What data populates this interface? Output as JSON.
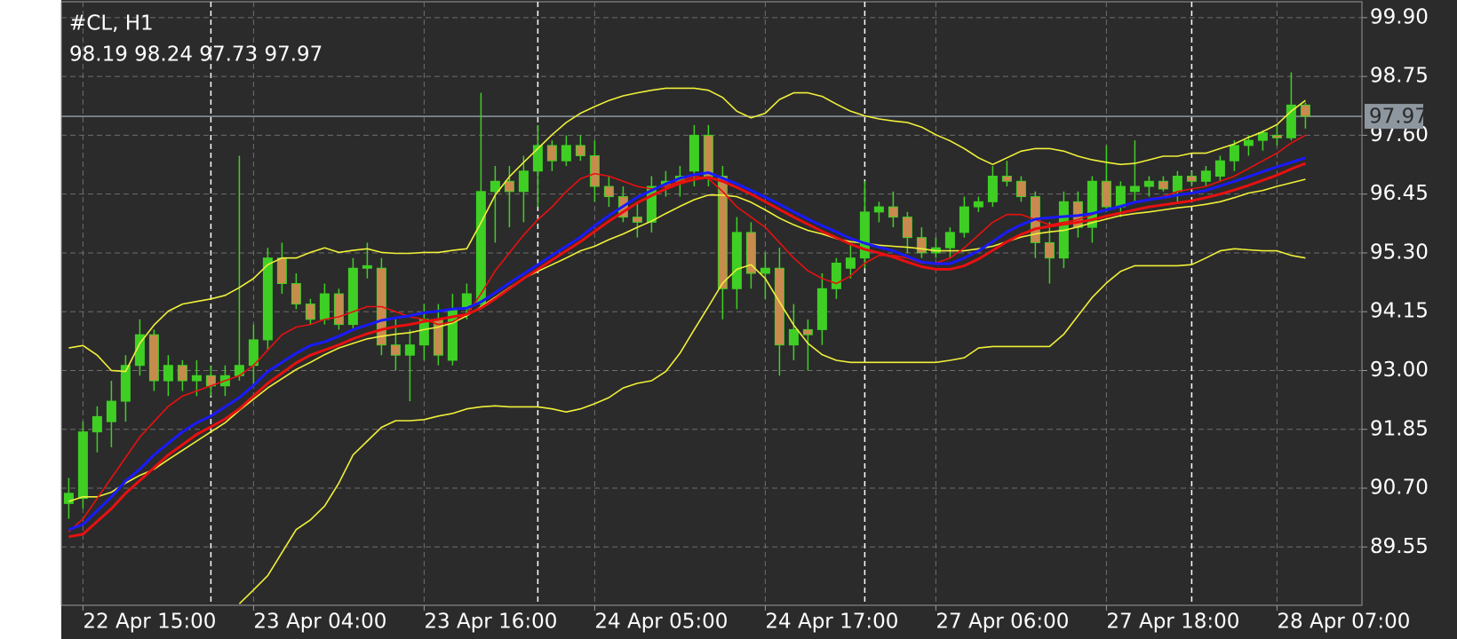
{
  "chart_data": {
    "type": "candlestick",
    "title": "#CL, H1",
    "ohlc_text": "98.19 98.24 97.73 97.97",
    "categories": [
      null,
      "22 Apr 15:00",
      null,
      null,
      null,
      null,
      null,
      null,
      null,
      null,
      null,
      null,
      null,
      "23 Apr 04:00",
      null,
      null,
      null,
      null,
      null,
      null,
      null,
      null,
      null,
      null,
      null,
      "23 Apr 16:00",
      null,
      null,
      null,
      null,
      null,
      null,
      null,
      null,
      null,
      null,
      null,
      "24 Apr 05:00",
      null,
      null,
      null,
      null,
      null,
      null,
      null,
      null,
      null,
      null,
      null,
      "24 Apr 17:00",
      null,
      null,
      null,
      null,
      null,
      null,
      null,
      null,
      null,
      null,
      null,
      "27 Apr 06:00",
      null,
      null,
      null,
      null,
      null,
      null,
      null,
      null,
      null,
      null,
      null,
      "27 Apr 18:00",
      null,
      null,
      null,
      null,
      null,
      null,
      null,
      null,
      null,
      null,
      null,
      "28 Apr 07:00",
      null,
      null
    ],
    "open": [
      90.4,
      90.5,
      91.8,
      92.0,
      92.4,
      93.1,
      93.7,
      92.8,
      93.1,
      92.8,
      92.9,
      92.7,
      92.9,
      93.1,
      93.6,
      95.2,
      94.7,
      94.3,
      94.0,
      94.5,
      93.9,
      95.0,
      95.0,
      93.5,
      93.3,
      93.5,
      94.0,
      93.2,
      94.2,
      94.3,
      96.5,
      96.7,
      96.5,
      96.9,
      97.4,
      97.1,
      97.4,
      97.2,
      96.6,
      96.4,
      96.0,
      95.9,
      96.6,
      96.7,
      96.9,
      97.6,
      96.8,
      94.6,
      95.7,
      94.9,
      95.0,
      93.5,
      93.8,
      93.8,
      94.6,
      95.0,
      95.2,
      96.1,
      96.2,
      96.0,
      95.6,
      95.3,
      95.4,
      95.7,
      96.2,
      96.3,
      96.8,
      96.7,
      96.4,
      95.5,
      95.2,
      96.3,
      95.8,
      96.7,
      96.2,
      96.5,
      96.6,
      96.7,
      96.5,
      96.8,
      96.7,
      96.8,
      97.1,
      97.4,
      97.5,
      97.6,
      97.55,
      98.19
    ],
    "high": [
      90.9,
      92.0,
      92.3,
      92.8,
      93.3,
      94.0,
      93.8,
      93.3,
      93.2,
      93.2,
      93.1,
      93.1,
      97.2,
      93.9,
      95.4,
      95.5,
      94.9,
      94.4,
      94.7,
      94.6,
      95.2,
      95.5,
      95.2,
      94.0,
      93.8,
      94.3,
      94.3,
      94.5,
      94.7,
      98.43,
      97.0,
      97.0,
      97.2,
      97.8,
      97.5,
      97.6,
      97.6,
      97.5,
      96.8,
      96.6,
      96.3,
      96.8,
      96.9,
      97.0,
      97.8,
      97.8,
      97.0,
      96.0,
      95.9,
      95.3,
      95.4,
      94.3,
      94.0,
      94.9,
      95.2,
      95.5,
      96.7,
      96.3,
      96.5,
      96.1,
      95.8,
      95.6,
      95.8,
      96.4,
      96.4,
      97.0,
      97.1,
      96.8,
      96.5,
      95.9,
      96.5,
      96.5,
      96.8,
      97.4,
      96.7,
      97.5,
      96.8,
      96.8,
      96.9,
      96.9,
      97.0,
      97.2,
      97.5,
      97.6,
      97.7,
      97.8,
      98.83,
      98.24
    ],
    "low": [
      90.1,
      90.3,
      91.4,
      91.5,
      92.0,
      92.9,
      92.6,
      92.5,
      92.6,
      92.5,
      92.5,
      92.5,
      92.8,
      92.7,
      93.4,
      94.5,
      94.2,
      93.9,
      93.9,
      93.8,
      93.8,
      94.8,
      93.3,
      93.0,
      92.4,
      93.2,
      93.1,
      93.1,
      94.0,
      94.2,
      95.5,
      95.8,
      95.9,
      96.2,
      96.9,
      97.0,
      97.1,
      96.3,
      96.2,
      95.9,
      95.6,
      95.7,
      96.4,
      96.4,
      96.6,
      96.6,
      94.0,
      94.2,
      94.6,
      94.4,
      92.9,
      93.2,
      93.0,
      93.5,
      94.4,
      94.8,
      95.0,
      95.9,
      95.8,
      95.3,
      95.2,
      95.2,
      95.2,
      95.6,
      96.1,
      96.2,
      96.6,
      96.3,
      95.2,
      94.7,
      95.0,
      95.6,
      95.5,
      96.1,
      96.0,
      96.3,
      96.4,
      96.5,
      96.3,
      96.6,
      96.6,
      96.7,
      96.9,
      97.2,
      97.3,
      97.4,
      97.5,
      97.73
    ],
    "close": [
      90.6,
      91.8,
      92.1,
      92.4,
      93.1,
      93.7,
      92.8,
      93.1,
      92.8,
      92.9,
      92.7,
      92.9,
      93.1,
      93.6,
      95.2,
      94.7,
      94.3,
      94.0,
      94.5,
      93.9,
      95.0,
      95.05,
      93.5,
      93.3,
      93.5,
      94.0,
      93.3,
      94.2,
      94.5,
      96.5,
      96.7,
      96.5,
      96.9,
      97.4,
      97.1,
      97.4,
      97.2,
      96.6,
      96.4,
      96.0,
      95.9,
      96.6,
      96.7,
      96.8,
      97.6,
      96.8,
      94.6,
      95.7,
      94.9,
      95.0,
      93.5,
      93.8,
      93.7,
      94.6,
      95.1,
      95.2,
      96.1,
      96.2,
      96.0,
      95.6,
      95.3,
      95.4,
      95.7,
      96.2,
      96.3,
      96.8,
      96.7,
      96.4,
      95.5,
      95.2,
      96.3,
      95.8,
      96.7,
      96.2,
      96.6,
      96.6,
      96.7,
      96.55,
      96.8,
      96.7,
      96.9,
      97.1,
      97.4,
      97.5,
      97.65,
      97.55,
      98.19,
      97.97
    ],
    "bull_color": "#3fcf24",
    "bear_color": "#c98a4e",
    "wick_color": "#3fcf24",
    "series": [
      {
        "color": "#f0f03a",
        "style": "thin",
        "values": [
          93.44,
          93.49,
          93.3,
          93.0,
          92.98,
          93.53,
          93.89,
          94.16,
          94.3,
          94.35,
          94.4,
          94.47,
          94.62,
          94.8,
          95.07,
          95.2,
          95.2,
          95.31,
          95.4,
          95.31,
          95.35,
          95.38,
          95.31,
          95.29,
          95.29,
          95.31,
          95.31,
          95.35,
          95.38,
          95.89,
          96.43,
          96.79,
          97.07,
          97.34,
          97.61,
          97.85,
          98.03,
          98.16,
          98.28,
          98.37,
          98.43,
          98.48,
          98.52,
          98.52,
          98.52,
          98.48,
          98.34,
          98.07,
          97.94,
          98.03,
          98.3,
          98.43,
          98.43,
          98.36,
          98.21,
          98.07,
          97.98,
          97.92,
          97.88,
          97.85,
          97.76,
          97.61,
          97.49,
          97.34,
          97.16,
          97.03,
          97.16,
          97.29,
          97.34,
          97.34,
          97.29,
          97.19,
          97.12,
          97.07,
          97.03,
          97.05,
          97.12,
          97.19,
          97.19,
          97.25,
          97.25,
          97.34,
          97.43,
          97.56,
          97.67,
          97.81,
          98.07,
          98.28
        ]
      },
      {
        "color": "#f0f03a",
        "style": "thin",
        "values": [
          null,
          null,
          null,
          null,
          null,
          null,
          null,
          null,
          null,
          null,
          null,
          null,
          88.44,
          88.71,
          88.99,
          89.44,
          89.89,
          90.08,
          90.35,
          90.8,
          91.35,
          91.62,
          91.89,
          92.02,
          92.02,
          92.04,
          92.11,
          92.16,
          92.25,
          92.29,
          92.31,
          92.29,
          92.29,
          92.29,
          92.25,
          92.19,
          92.25,
          92.35,
          92.47,
          92.66,
          92.75,
          92.8,
          92.98,
          93.34,
          93.8,
          94.25,
          94.71,
          94.98,
          95.07,
          94.8,
          94.34,
          93.89,
          93.53,
          93.31,
          93.2,
          93.16,
          93.16,
          93.16,
          93.16,
          93.16,
          93.16,
          93.16,
          93.2,
          93.25,
          93.44,
          93.47,
          93.47,
          93.47,
          93.47,
          93.47,
          93.71,
          94.07,
          94.43,
          94.71,
          94.94,
          95.05,
          95.05,
          95.05,
          95.05,
          95.07,
          95.2,
          95.34,
          95.38,
          95.36,
          95.34,
          95.34,
          95.25,
          95.2
        ]
      },
      {
        "color": "#f0f03a",
        "style": "thin",
        "values": [
          90.44,
          90.53,
          90.53,
          90.62,
          90.8,
          90.95,
          91.07,
          91.26,
          91.44,
          91.62,
          91.8,
          91.98,
          92.22,
          92.44,
          92.66,
          92.84,
          93.02,
          93.16,
          93.31,
          93.44,
          93.53,
          93.62,
          93.67,
          93.71,
          93.74,
          93.8,
          93.85,
          93.93,
          94.07,
          94.25,
          94.43,
          94.62,
          94.8,
          94.94,
          95.07,
          95.2,
          95.34,
          95.43,
          95.56,
          95.67,
          95.8,
          95.92,
          96.07,
          96.21,
          96.34,
          96.43,
          96.43,
          96.4,
          96.29,
          96.14,
          95.98,
          95.85,
          95.74,
          95.67,
          95.58,
          95.52,
          95.49,
          95.45,
          95.43,
          95.41,
          95.38,
          95.34,
          95.34,
          95.34,
          95.38,
          95.43,
          95.52,
          95.61,
          95.67,
          95.71,
          95.74,
          95.81,
          95.89,
          95.96,
          96.03,
          96.07,
          96.1,
          96.14,
          96.18,
          96.21,
          96.25,
          96.3,
          96.38,
          96.47,
          96.52,
          96.6,
          96.67,
          96.74
        ]
      },
      {
        "color": "#e81010",
        "style": "thin",
        "values": [
          89.85,
          90.1,
          90.5,
          90.9,
          91.3,
          91.7,
          92.0,
          92.3,
          92.5,
          92.6,
          92.7,
          92.8,
          92.9,
          93.1,
          93.4,
          93.7,
          93.85,
          93.9,
          94.0,
          94.05,
          94.15,
          94.25,
          94.25,
          94.15,
          94.05,
          94.0,
          93.9,
          93.95,
          94.1,
          94.5,
          94.95,
          95.3,
          95.65,
          95.95,
          96.2,
          96.5,
          96.75,
          96.85,
          96.8,
          96.7,
          96.6,
          96.55,
          96.6,
          96.7,
          96.8,
          96.75,
          96.5,
          96.2,
          96.0,
          95.8,
          95.5,
          95.2,
          94.95,
          94.8,
          94.7,
          94.85,
          95.1,
          95.25,
          95.25,
          95.2,
          95.1,
          95.1,
          95.2,
          95.4,
          95.65,
          95.9,
          96.05,
          96.05,
          95.95,
          95.85,
          95.9,
          95.95,
          96.05,
          96.15,
          96.2,
          96.3,
          96.35,
          96.4,
          96.5,
          96.55,
          96.6,
          96.7,
          96.8,
          96.95,
          97.1,
          97.25,
          97.45,
          97.6
        ]
      },
      {
        "color": "#e81010",
        "style": "thick",
        "values": [
          89.75,
          89.8,
          90.05,
          90.3,
          90.6,
          90.85,
          91.1,
          91.35,
          91.55,
          91.75,
          91.9,
          92.05,
          92.25,
          92.5,
          92.75,
          92.95,
          93.15,
          93.3,
          93.4,
          93.5,
          93.62,
          93.72,
          93.8,
          93.86,
          93.9,
          93.96,
          94.0,
          94.05,
          94.1,
          94.22,
          94.4,
          94.6,
          94.8,
          94.98,
          95.16,
          95.34,
          95.52,
          95.72,
          95.92,
          96.1,
          96.28,
          96.42,
          96.55,
          96.66,
          96.74,
          96.78,
          96.7,
          96.58,
          96.45,
          96.3,
          96.15,
          96.0,
          95.86,
          95.72,
          95.6,
          95.47,
          95.37,
          95.3,
          95.22,
          95.12,
          95.03,
          94.98,
          94.98,
          95.05,
          95.18,
          95.35,
          95.52,
          95.66,
          95.77,
          95.82,
          95.86,
          95.9,
          95.95,
          96.02,
          96.08,
          96.14,
          96.2,
          96.24,
          96.28,
          96.32,
          96.38,
          96.45,
          96.53,
          96.62,
          96.72,
          96.82,
          96.94,
          97.05
        ]
      },
      {
        "color": "#1a1aff",
        "style": "thick",
        "values": [
          89.89,
          89.99,
          90.26,
          90.53,
          90.84,
          91.07,
          91.35,
          91.58,
          91.8,
          91.98,
          92.11,
          92.29,
          92.47,
          92.71,
          92.98,
          93.16,
          93.34,
          93.49,
          93.56,
          93.67,
          93.8,
          93.89,
          93.98,
          94.03,
          94.07,
          94.13,
          94.16,
          94.2,
          94.22,
          94.34,
          94.52,
          94.71,
          94.89,
          95.07,
          95.25,
          95.43,
          95.61,
          95.83,
          96.03,
          96.21,
          96.39,
          96.52,
          96.65,
          96.76,
          96.83,
          96.87,
          96.76,
          96.65,
          96.52,
          96.39,
          96.25,
          96.1,
          95.96,
          95.83,
          95.71,
          95.58,
          95.49,
          95.41,
          95.34,
          95.23,
          95.12,
          95.09,
          95.09,
          95.2,
          95.34,
          95.52,
          95.71,
          95.85,
          95.96,
          95.99,
          96.01,
          96.03,
          96.07,
          96.14,
          96.21,
          96.29,
          96.34,
          96.38,
          96.43,
          96.47,
          96.52,
          96.61,
          96.7,
          96.79,
          96.89,
          96.98,
          97.07,
          97.16
        ]
      }
    ],
    "current_price": 97.97,
    "current_price_color": "#8e979f",
    "ylim": [
      88.41,
      100.21
    ],
    "yticks": [
      {
        "value": 99.9,
        "label": "99.90"
      },
      98.75,
      {
        "value": 97.6,
        "label": "97.60"
      },
      96.45,
      {
        "value": 95.3,
        "label": "95.30"
      },
      94.15,
      {
        "value": 93.0,
        "label": "93.00"
      },
      91.85,
      {
        "value": 90.7,
        "label": "90.70"
      },
      89.55
    ],
    "grid": true
  }
}
